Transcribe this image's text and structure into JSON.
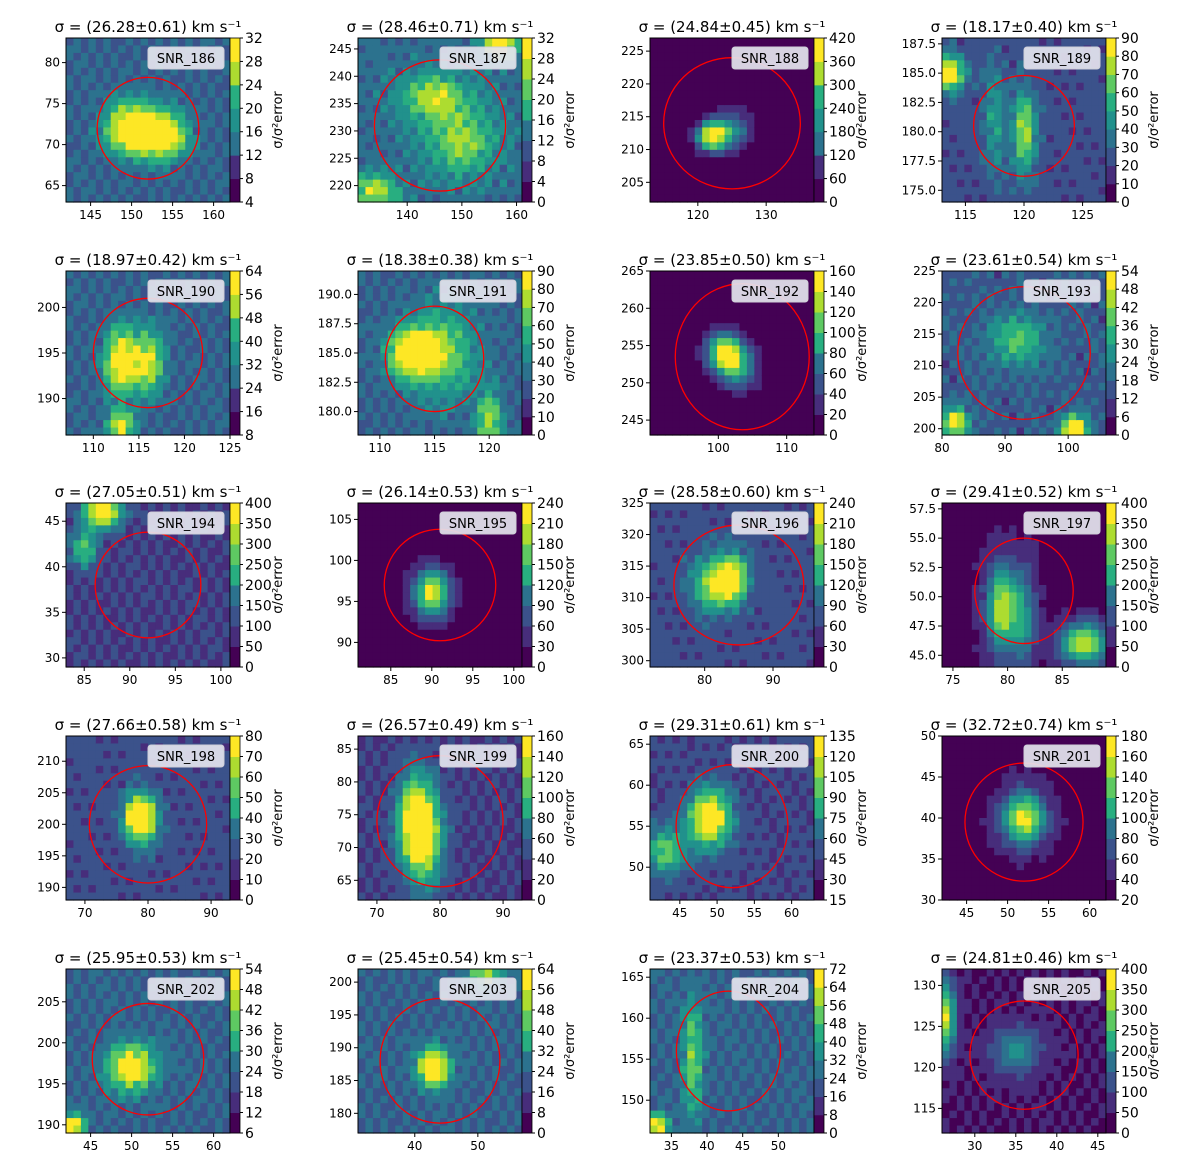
{
  "figure": {
    "colorbar_label": "σ/σ²error",
    "colormap": [
      "#440154",
      "#472d7b",
      "#3b528b",
      "#2c728e",
      "#21918c",
      "#28ae80",
      "#5ec962",
      "#addc30",
      "#fde725"
    ],
    "circle_color": "#ff0000",
    "title_template": "σ = (VAL±ERR) km s⁻¹"
  },
  "chart_data": [
    {
      "type": "heatmap",
      "name": "SNR_186",
      "sigma": "26.28±0.61",
      "xlim": [
        142,
        162
      ],
      "ylim": [
        63,
        83
      ],
      "xticks": [
        145,
        150,
        155,
        160
      ],
      "yticks": [
        65,
        70,
        75,
        80
      ],
      "cticks": [
        4,
        8,
        12,
        16,
        20,
        24,
        28,
        32
      ],
      "circle": {
        "cx": 152,
        "cy": 72,
        "r": 6.2
      },
      "peaks": [
        {
          "x": 150,
          "y": 72,
          "a": 0.85,
          "sx": 2.2,
          "sy": 2.2
        },
        {
          "x": 154,
          "y": 71,
          "a": 0.7,
          "sx": 2,
          "sy": 2
        }
      ],
      "base": 0.3
    },
    {
      "type": "heatmap",
      "name": "SNR_187",
      "sigma": "28.46±0.71",
      "xlim": [
        131,
        161
      ],
      "ylim": [
        217,
        247
      ],
      "xticks": [
        140,
        150,
        160
      ],
      "yticks": [
        220,
        225,
        230,
        235,
        240,
        245
      ],
      "cticks": [
        0,
        4,
        8,
        12,
        16,
        20,
        24,
        28,
        32
      ],
      "circle": {
        "cx": 146,
        "cy": 231,
        "r": 12
      },
      "peaks": [
        {
          "x": 145,
          "y": 236,
          "a": 0.5,
          "sx": 4,
          "sy": 3
        },
        {
          "x": 150,
          "y": 228,
          "a": 0.45,
          "sx": 4,
          "sy": 4
        },
        {
          "x": 157,
          "y": 246,
          "a": 0.8,
          "sx": 2,
          "sy": 2
        },
        {
          "x": 134,
          "y": 219,
          "a": 0.5,
          "sx": 3,
          "sy": 2
        }
      ],
      "base": 0.35
    },
    {
      "type": "heatmap",
      "name": "SNR_188",
      "sigma": "24.84±0.45",
      "xlim": [
        113,
        137
      ],
      "ylim": [
        202,
        227
      ],
      "xticks": [
        120,
        130
      ],
      "yticks": [
        205,
        210,
        215,
        220,
        225
      ],
      "cticks": [
        0,
        60,
        120,
        180,
        240,
        300,
        360,
        420
      ],
      "circle": {
        "cx": 125,
        "cy": 214,
        "r": 10
      },
      "peaks": [
        {
          "x": 122,
          "y": 212,
          "a": 0.95,
          "sx": 1.5,
          "sy": 1.5
        },
        {
          "x": 125,
          "y": 213,
          "a": 0.45,
          "sx": 2,
          "sy": 2
        }
      ],
      "base": 0.02
    },
    {
      "type": "heatmap",
      "name": "SNR_189",
      "sigma": "18.17±0.40",
      "xlim": [
        113,
        127
      ],
      "ylim": [
        174,
        188
      ],
      "xticks": [
        115,
        120,
        125
      ],
      "yticks": [
        175.0,
        177.5,
        180.0,
        182.5,
        185.0,
        187.5
      ],
      "cticks": [
        0,
        10,
        20,
        30,
        40,
        50,
        60,
        70,
        80,
        90
      ],
      "circle": {
        "cx": 120,
        "cy": 180.5,
        "r": 4.3
      },
      "peaks": [
        {
          "x": 113.5,
          "y": 185,
          "a": 0.85,
          "sx": 1,
          "sy": 1
        },
        {
          "x": 120,
          "y": 180,
          "a": 0.55,
          "sx": 0.7,
          "sy": 2.5
        },
        {
          "x": 117.5,
          "y": 181,
          "a": 0.3,
          "sx": 0.6,
          "sy": 3
        }
      ],
      "base": 0.25
    },
    {
      "type": "heatmap",
      "name": "SNR_190",
      "sigma": "18.97±0.42",
      "xlim": [
        107,
        125
      ],
      "ylim": [
        186,
        204
      ],
      "xticks": [
        110,
        115,
        120,
        125
      ],
      "yticks": [
        190,
        195,
        200
      ],
      "cticks": [
        8,
        16,
        24,
        32,
        40,
        48,
        56,
        64
      ],
      "circle": {
        "cx": 116,
        "cy": 195,
        "r": 6
      },
      "peaks": [
        {
          "x": 113,
          "y": 194,
          "a": 0.8,
          "sx": 1.2,
          "sy": 2.5
        },
        {
          "x": 116,
          "y": 194,
          "a": 0.6,
          "sx": 1.2,
          "sy": 2.5
        },
        {
          "x": 113,
          "y": 187,
          "a": 0.6,
          "sx": 1,
          "sy": 1.2
        }
      ],
      "base": 0.3
    },
    {
      "type": "heatmap",
      "name": "SNR_191",
      "sigma": "18.38±0.38",
      "xlim": [
        108,
        123
      ],
      "ylim": [
        178,
        192
      ],
      "xticks": [
        110,
        115,
        120
      ],
      "yticks": [
        180.0,
        182.5,
        185.0,
        187.5,
        190.0
      ],
      "cticks": [
        0,
        10,
        20,
        30,
        40,
        50,
        60,
        70,
        80,
        90
      ],
      "circle": {
        "cx": 115,
        "cy": 184.5,
        "r": 4.5
      },
      "peaks": [
        {
          "x": 113,
          "y": 185,
          "a": 0.85,
          "sx": 1.5,
          "sy": 1.5
        },
        {
          "x": 116,
          "y": 185,
          "a": 0.4,
          "sx": 2,
          "sy": 3
        },
        {
          "x": 120,
          "y": 179,
          "a": 0.5,
          "sx": 0.8,
          "sy": 2
        }
      ],
      "base": 0.3
    },
    {
      "type": "heatmap",
      "name": "SNR_192",
      "sigma": "23.85±0.50",
      "xlim": [
        90,
        114
      ],
      "ylim": [
        243,
        265
      ],
      "xticks": [
        100,
        110
      ],
      "yticks": [
        245,
        250,
        255,
        260,
        265
      ],
      "cticks": [
        0,
        20,
        40,
        60,
        80,
        100,
        120,
        140,
        160
      ],
      "circle": {
        "cx": 103.5,
        "cy": 253.5,
        "r": 9.8
      },
      "peaks": [
        {
          "x": 101,
          "y": 254,
          "a": 0.9,
          "sx": 1.8,
          "sy": 1.8
        },
        {
          "x": 103,
          "y": 252,
          "a": 0.45,
          "sx": 2,
          "sy": 2
        }
      ],
      "base": 0.03
    },
    {
      "type": "heatmap",
      "name": "SNR_193",
      "sigma": "23.61±0.54",
      "xlim": [
        80,
        106
      ],
      "ylim": [
        199,
        225
      ],
      "xticks": [
        80,
        90,
        100
      ],
      "yticks": [
        200,
        205,
        210,
        215,
        220,
        225
      ],
      "cticks": [
        0,
        6,
        12,
        18,
        24,
        30,
        36,
        42,
        48,
        54
      ],
      "circle": {
        "cx": 93,
        "cy": 212,
        "r": 10.5
      },
      "peaks": [
        {
          "x": 82,
          "y": 201,
          "a": 0.75,
          "sx": 1.5,
          "sy": 1.5
        },
        {
          "x": 101,
          "y": 200,
          "a": 0.8,
          "sx": 1.5,
          "sy": 1.5
        },
        {
          "x": 92,
          "y": 214,
          "a": 0.4,
          "sx": 3,
          "sy": 3
        }
      ],
      "base": 0.28
    },
    {
      "type": "heatmap",
      "name": "SNR_194",
      "sigma": "27.05±0.51",
      "xlim": [
        83,
        101
      ],
      "ylim": [
        29,
        47
      ],
      "xticks": [
        85,
        90,
        95,
        100
      ],
      "yticks": [
        30,
        35,
        40,
        45
      ],
      "cticks": [
        0,
        50,
        100,
        150,
        200,
        250,
        300,
        350,
        400
      ],
      "circle": {
        "cx": 92,
        "cy": 38,
        "r": 5.8
      },
      "peaks": [
        {
          "x": 87,
          "y": 46,
          "a": 0.9,
          "sx": 1.5,
          "sy": 1.2
        },
        {
          "x": 85,
          "y": 42,
          "a": 0.5,
          "sx": 1,
          "sy": 1.5
        }
      ],
      "base": 0.2
    },
    {
      "type": "heatmap",
      "name": "SNR_195",
      "sigma": "26.14±0.53",
      "xlim": [
        81,
        101
      ],
      "ylim": [
        87,
        107
      ],
      "xticks": [
        85,
        90,
        95,
        100
      ],
      "yticks": [
        90,
        95,
        100,
        105
      ],
      "cticks": [
        0,
        30,
        60,
        90,
        120,
        150,
        180,
        210,
        240
      ],
      "circle": {
        "cx": 91,
        "cy": 97,
        "r": 6.8
      },
      "peaks": [
        {
          "x": 90,
          "y": 96,
          "a": 0.9,
          "sx": 1.5,
          "sy": 2
        }
      ],
      "base": 0.05
    },
    {
      "type": "heatmap",
      "name": "SNR_196",
      "sigma": "28.58±0.60",
      "xlim": [
        72,
        96
      ],
      "ylim": [
        299,
        325
      ],
      "xticks": [
        80,
        90
      ],
      "yticks": [
        300,
        305,
        310,
        315,
        320,
        325
      ],
      "cticks": [
        0,
        30,
        60,
        90,
        120,
        150,
        180,
        210,
        240
      ],
      "circle": {
        "cx": 85,
        "cy": 312,
        "r": 9.5
      },
      "peaks": [
        {
          "x": 84,
          "y": 313,
          "a": 0.85,
          "sx": 1.5,
          "sy": 2.5
        },
        {
          "x": 81,
          "y": 312,
          "a": 0.55,
          "sx": 2,
          "sy": 3
        }
      ],
      "base": 0.25
    },
    {
      "type": "heatmap",
      "name": "SNR_197",
      "sigma": "29.41±0.52",
      "xlim": [
        74,
        89
      ],
      "ylim": [
        44,
        58
      ],
      "xticks": [
        75,
        80,
        85
      ],
      "yticks": [
        45.0,
        47.5,
        50.0,
        52.5,
        55.0,
        57.5
      ],
      "cticks": [
        0,
        50,
        100,
        150,
        200,
        250,
        300,
        350,
        400
      ],
      "circle": {
        "cx": 81.5,
        "cy": 50.5,
        "r": 4.5
      },
      "peaks": [
        {
          "x": 79.5,
          "y": 49,
          "a": 0.8,
          "sx": 1,
          "sy": 2.5
        },
        {
          "x": 81.5,
          "y": 48,
          "a": 0.4,
          "sx": 0.8,
          "sy": 3
        },
        {
          "x": 87,
          "y": 46,
          "a": 0.8,
          "sx": 1.5,
          "sy": 1.2
        }
      ],
      "base": 0.08
    },
    {
      "type": "heatmap",
      "name": "SNR_198",
      "sigma": "27.66±0.58",
      "xlim": [
        67,
        93
      ],
      "ylim": [
        188,
        214
      ],
      "xticks": [
        70,
        80,
        90
      ],
      "yticks": [
        190,
        195,
        200,
        205,
        210
      ],
      "cticks": [
        0,
        10,
        20,
        30,
        40,
        50,
        60,
        70,
        80
      ],
      "circle": {
        "cx": 80,
        "cy": 200,
        "r": 9.3
      },
      "peaks": [
        {
          "x": 78,
          "y": 201,
          "a": 0.8,
          "sx": 1.3,
          "sy": 2.5
        },
        {
          "x": 80,
          "y": 201,
          "a": 0.6,
          "sx": 1.3,
          "sy": 2.5
        }
      ],
      "base": 0.25
    },
    {
      "type": "heatmap",
      "name": "SNR_199",
      "sigma": "26.57±0.49",
      "xlim": [
        67,
        93
      ],
      "ylim": [
        62,
        87
      ],
      "xticks": [
        70,
        80,
        90
      ],
      "yticks": [
        65,
        70,
        75,
        80,
        85
      ],
      "cticks": [
        0,
        20,
        40,
        60,
        80,
        100,
        120,
        140,
        160
      ],
      "circle": {
        "cx": 80,
        "cy": 74,
        "r": 10
      },
      "peaks": [
        {
          "x": 76,
          "y": 74,
          "a": 0.8,
          "sx": 2,
          "sy": 5
        },
        {
          "x": 78,
          "y": 71,
          "a": 0.5,
          "sx": 2,
          "sy": 5
        }
      ],
      "base": 0.2
    },
    {
      "type": "heatmap",
      "name": "SNR_200",
      "sigma": "29.31±0.61",
      "xlim": [
        41,
        63
      ],
      "ylim": [
        46,
        66
      ],
      "xticks": [
        45,
        50,
        55,
        60
      ],
      "yticks": [
        50,
        55,
        60,
        65
      ],
      "cticks": [
        15,
        30,
        45,
        60,
        75,
        90,
        105,
        120,
        135
      ],
      "circle": {
        "cx": 52,
        "cy": 55,
        "r": 7.5
      },
      "peaks": [
        {
          "x": 49,
          "y": 56,
          "a": 0.85,
          "sx": 2,
          "sy": 2.5
        },
        {
          "x": 43,
          "y": 52,
          "a": 0.5,
          "sx": 2,
          "sy": 2
        }
      ],
      "base": 0.22
    },
    {
      "type": "heatmap",
      "name": "SNR_201",
      "sigma": "32.72±0.74",
      "xlim": [
        42,
        62
      ],
      "ylim": [
        30,
        50
      ],
      "xticks": [
        45,
        50,
        55,
        60
      ],
      "yticks": [
        30,
        35,
        40,
        45,
        50
      ],
      "cticks": [
        20,
        40,
        60,
        80,
        100,
        120,
        140,
        160,
        180
      ],
      "circle": {
        "cx": 52,
        "cy": 39.5,
        "r": 7.2
      },
      "peaks": [
        {
          "x": 52,
          "y": 40,
          "a": 0.85,
          "sx": 1.8,
          "sy": 2.2
        }
      ],
      "base": 0.08
    },
    {
      "type": "heatmap",
      "name": "SNR_202",
      "sigma": "25.95±0.53",
      "xlim": [
        42,
        62
      ],
      "ylim": [
        189,
        209
      ],
      "xticks": [
        45,
        50,
        55,
        60
      ],
      "yticks": [
        190,
        195,
        200,
        205
      ],
      "cticks": [
        6,
        12,
        18,
        24,
        30,
        36,
        42,
        48,
        54
      ],
      "circle": {
        "cx": 52,
        "cy": 198,
        "r": 6.8
      },
      "peaks": [
        {
          "x": 50,
          "y": 197,
          "a": 0.75,
          "sx": 2,
          "sy": 2
        },
        {
          "x": 43,
          "y": 190,
          "a": 0.7,
          "sx": 1,
          "sy": 1
        }
      ],
      "base": 0.3
    },
    {
      "type": "heatmap",
      "name": "SNR_203",
      "sigma": "25.45±0.54",
      "xlim": [
        31,
        57
      ],
      "ylim": [
        177,
        202
      ],
      "xticks": [
        40,
        50
      ],
      "yticks": [
        180,
        185,
        190,
        195,
        200
      ],
      "cticks": [
        0,
        8,
        16,
        24,
        32,
        40,
        48,
        56,
        64
      ],
      "circle": {
        "cx": 44,
        "cy": 188,
        "r": 9.5
      },
      "peaks": [
        {
          "x": 43,
          "y": 187,
          "a": 0.9,
          "sx": 1.8,
          "sy": 2
        },
        {
          "x": 51,
          "y": 201,
          "a": 0.5,
          "sx": 2,
          "sy": 1.5
        }
      ],
      "base": 0.3
    },
    {
      "type": "heatmap",
      "name": "SNR_204",
      "sigma": "23.37±0.53",
      "xlim": [
        32,
        55
      ],
      "ylim": [
        146,
        166
      ],
      "xticks": [
        35,
        40,
        45,
        50
      ],
      "yticks": [
        150,
        155,
        160,
        165
      ],
      "cticks": [
        0,
        8,
        16,
        24,
        32,
        40,
        48,
        56,
        64,
        72
      ],
      "circle": {
        "cx": 43,
        "cy": 156,
        "r": 7.3
      },
      "peaks": [
        {
          "x": 33,
          "y": 147,
          "a": 0.75,
          "sx": 1,
          "sy": 1
        },
        {
          "x": 38,
          "y": 155,
          "a": 0.45,
          "sx": 1,
          "sy": 5
        }
      ],
      "base": 0.3
    },
    {
      "type": "heatmap",
      "name": "SNR_205",
      "sigma": "24.81±0.46",
      "xlim": [
        26,
        46
      ],
      "ylim": [
        112,
        132
      ],
      "xticks": [
        30,
        35,
        40,
        45
      ],
      "yticks": [
        115,
        120,
        125,
        130
      ],
      "cticks": [
        0,
        50,
        100,
        150,
        200,
        250,
        300,
        350,
        400
      ],
      "circle": {
        "cx": 36,
        "cy": 121.5,
        "r": 6.6
      },
      "peaks": [
        {
          "x": 26.5,
          "y": 126,
          "a": 0.8,
          "sx": 0.8,
          "sy": 3
        },
        {
          "x": 35,
          "y": 122,
          "a": 0.4,
          "sx": 2,
          "sy": 2
        }
      ],
      "base": 0.1
    }
  ]
}
